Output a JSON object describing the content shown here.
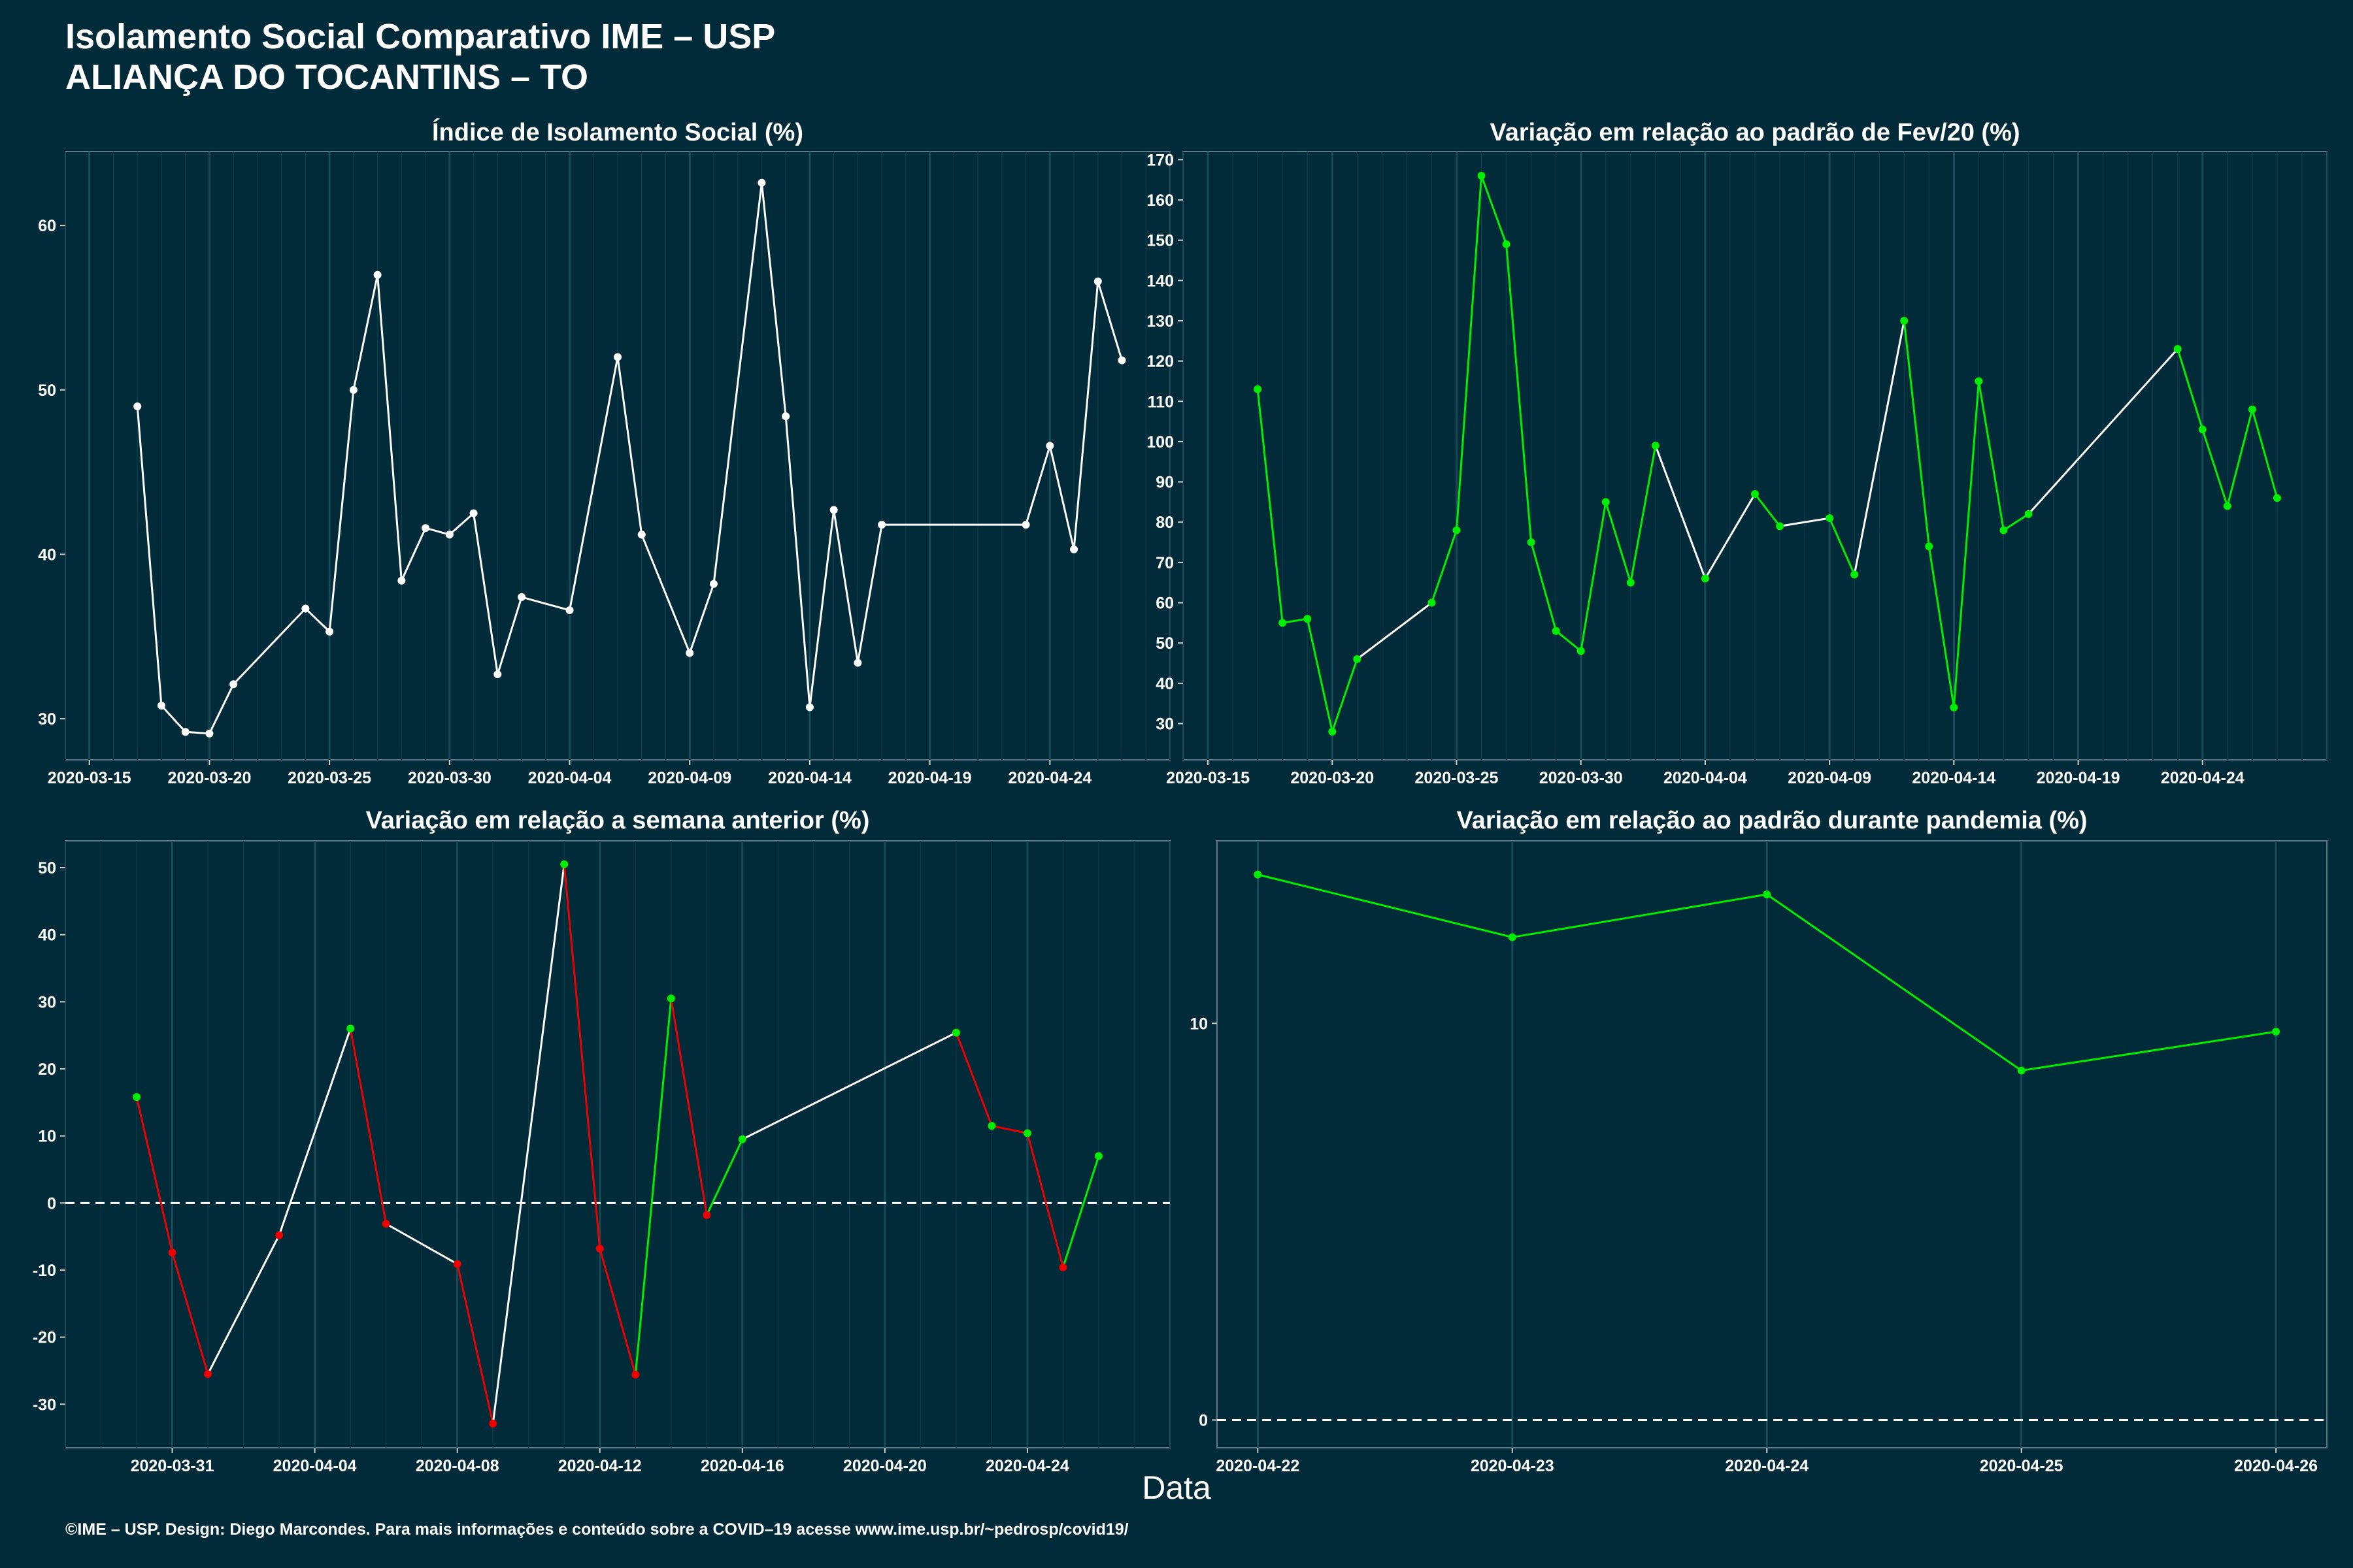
{
  "header": {
    "title_line1": "Isolamento Social Comparativo IME – USP",
    "title_line2": "ALIANÇA DO TOCANTINS – TO"
  },
  "xlabel": "Data",
  "footer": "©IME – USP. Design: Diego Marcondes. Para mais informações e conteúdo sobre a COVID–19 acesse www.ime.usp.br/~pedrosp/covid19/",
  "colors": {
    "background": "#022b3a",
    "line_default": "#ffffff",
    "up": "#00ee00",
    "down": "#ee0000"
  },
  "chart_data": [
    {
      "type": "line",
      "title": "Índice de Isolamento Social (%)",
      "xlim": [
        "2020-03-14",
        "2020-04-29"
      ],
      "ylim": [
        27.5,
        64.5
      ],
      "yticks": [
        30,
        40,
        50,
        60
      ],
      "xticks": [
        "2020-03-15",
        "2020-03-20",
        "2020-03-25",
        "2020-03-30",
        "2020-04-04",
        "2020-04-09",
        "2020-04-14",
        "2020-04-19",
        "2020-04-24"
      ],
      "grid": true,
      "color_mode": "single",
      "points": [
        [
          "2020-03-17",
          49.0
        ],
        [
          "2020-03-18",
          30.8
        ],
        [
          "2020-03-19",
          29.2
        ],
        [
          "2020-03-20",
          29.1
        ],
        [
          "2020-03-21",
          32.1
        ],
        [
          "2020-03-24",
          36.7
        ],
        [
          "2020-03-25",
          35.3
        ],
        [
          "2020-03-26",
          50.0
        ],
        [
          "2020-03-27",
          57.0
        ],
        [
          "2020-03-28",
          38.4
        ],
        [
          "2020-03-29",
          41.6
        ],
        [
          "2020-03-30",
          41.2
        ],
        [
          "2020-03-31",
          42.5
        ],
        [
          "2020-04-01",
          32.7
        ],
        [
          "2020-04-02",
          37.4
        ],
        [
          "2020-04-04",
          36.6
        ],
        [
          "2020-04-06",
          52.0
        ],
        [
          "2020-04-07",
          41.2
        ],
        [
          "2020-04-09",
          34.0
        ],
        [
          "2020-04-10",
          38.2
        ],
        [
          "2020-04-12",
          62.6
        ],
        [
          "2020-04-13",
          48.4
        ],
        [
          "2020-04-14",
          30.7
        ],
        [
          "2020-04-15",
          42.7
        ],
        [
          "2020-04-16",
          33.4
        ],
        [
          "2020-04-17",
          41.8
        ],
        [
          "2020-04-23",
          41.8
        ],
        [
          "2020-04-24",
          46.6
        ],
        [
          "2020-04-25",
          40.3
        ],
        [
          "2020-04-26",
          56.6
        ],
        [
          "2020-04-27",
          51.8
        ]
      ]
    },
    {
      "type": "line",
      "title": "Variação em relação ao padrão de Fev/20 (%)",
      "xlim": [
        "2020-03-14",
        "2020-04-29"
      ],
      "ylim": [
        21,
        172
      ],
      "yticks": [
        30,
        40,
        50,
        60,
        70,
        80,
        90,
        100,
        110,
        120,
        130,
        140,
        150,
        160,
        170
      ],
      "xticks": [
        "2020-03-15",
        "2020-03-20",
        "2020-03-25",
        "2020-03-30",
        "2020-04-04",
        "2020-04-09",
        "2020-04-14",
        "2020-04-19",
        "2020-04-24"
      ],
      "grid": true,
      "color_mode": "value_change",
      "points": [
        [
          "2020-03-17",
          113
        ],
        [
          "2020-03-18",
          55
        ],
        [
          "2020-03-19",
          56
        ],
        [
          "2020-03-20",
          28
        ],
        [
          "2020-03-21",
          46
        ],
        [
          "2020-03-24",
          60
        ],
        [
          "2020-03-25",
          78
        ],
        [
          "2020-03-26",
          166
        ],
        [
          "2020-03-27",
          149
        ],
        [
          "2020-03-28",
          75
        ],
        [
          "2020-03-29",
          53
        ],
        [
          "2020-03-30",
          48
        ],
        [
          "2020-03-31",
          85
        ],
        [
          "2020-04-01",
          65
        ],
        [
          "2020-04-02",
          99
        ],
        [
          "2020-04-04",
          66
        ],
        [
          "2020-04-06",
          87
        ],
        [
          "2020-04-07",
          79
        ],
        [
          "2020-04-09",
          81
        ],
        [
          "2020-04-10",
          67
        ],
        [
          "2020-04-12",
          130
        ],
        [
          "2020-04-13",
          74
        ],
        [
          "2020-04-14",
          34
        ],
        [
          "2020-04-15",
          115
        ],
        [
          "2020-04-16",
          78
        ],
        [
          "2020-04-17",
          82
        ],
        [
          "2020-04-23",
          123
        ],
        [
          "2020-04-24",
          103
        ],
        [
          "2020-04-25",
          84
        ],
        [
          "2020-04-26",
          108
        ],
        [
          "2020-04-27",
          86
        ]
      ]
    },
    {
      "type": "line",
      "title": "Variação em relação a semana anterior (%)",
      "xlim": [
        "2020-03-28",
        "2020-04-28"
      ],
      "ylim": [
        -36.5,
        54
      ],
      "yticks": [
        -30,
        -20,
        -10,
        0,
        10,
        20,
        30,
        40,
        50
      ],
      "xticks": [
        "2020-03-31",
        "2020-04-04",
        "2020-04-08",
        "2020-04-12",
        "2020-04-16",
        "2020-04-20",
        "2020-04-24"
      ],
      "grid": true,
      "reference_line": 0,
      "color_mode": "sign_change",
      "points": [
        [
          "2020-03-30",
          15.8
        ],
        [
          "2020-03-31",
          -7.4
        ],
        [
          "2020-04-01",
          -25.5
        ],
        [
          "2020-04-03",
          -4.8
        ],
        [
          "2020-04-05",
          26.0
        ],
        [
          "2020-04-06",
          -3.1
        ],
        [
          "2020-04-08",
          -9.1
        ],
        [
          "2020-04-09",
          -32.9
        ],
        [
          "2020-04-11",
          50.5
        ],
        [
          "2020-04-12",
          -6.8
        ],
        [
          "2020-04-13",
          -25.6
        ],
        [
          "2020-04-14",
          30.5
        ],
        [
          "2020-04-15",
          -1.8
        ],
        [
          "2020-04-16",
          9.5
        ],
        [
          "2020-04-22",
          25.4
        ],
        [
          "2020-04-23",
          11.5
        ],
        [
          "2020-04-24",
          10.4
        ],
        [
          "2020-04-25",
          -9.6
        ],
        [
          "2020-04-26",
          7.0
        ]
      ]
    },
    {
      "type": "line",
      "title": "Variação em relação ao padrão durante pandemia (%)",
      "xlim": [
        "2020-04-21.84",
        "2020-04-26.2"
      ],
      "ylim": [
        -0.7,
        14.6
      ],
      "yticks": [
        0,
        10
      ],
      "xticks": [
        "2020-04-22",
        "2020-04-23",
        "2020-04-24",
        "2020-04-25",
        "2020-04-26"
      ],
      "grid": true,
      "reference_line": 0,
      "color_mode": "all_up",
      "points": [
        [
          "2020-04-22",
          13.75
        ],
        [
          "2020-04-23",
          12.17
        ],
        [
          "2020-04-24",
          13.25
        ],
        [
          "2020-04-25",
          8.81
        ],
        [
          "2020-04-26",
          9.79
        ]
      ]
    }
  ]
}
